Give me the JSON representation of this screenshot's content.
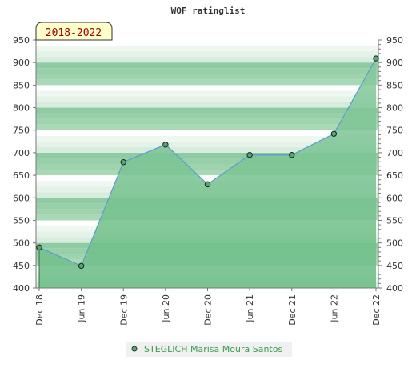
{
  "chart_data": {
    "type": "area",
    "title": "WOF ratinglist",
    "badge": "2018-2022",
    "categories": [
      "Dec 18",
      "Jun 19",
      "Dec 19",
      "Jun 20",
      "Dec 20",
      "Jun 21",
      "Dec 21",
      "Jun 22",
      "Dec 22"
    ],
    "series": [
      {
        "name": "STEGLICH Marisa Moura Santos",
        "values": [
          490,
          449,
          679,
          718,
          630,
          695,
          695,
          742,
          909
        ]
      }
    ],
    "ylim": [
      400,
      950
    ],
    "yticks": [
      400,
      450,
      500,
      550,
      600,
      650,
      700,
      750,
      800,
      850,
      900,
      950
    ],
    "grid": true,
    "legend_placement": "bottom-center",
    "colors": {
      "line": "#5b9bd5",
      "fill": "#7dc495",
      "marker": "#52a86d",
      "band_dark": "#97cfa8",
      "band_light": "#e4f2e8",
      "legend_text": "#3a9e52",
      "badge_bg": "#ffffcc"
    }
  }
}
